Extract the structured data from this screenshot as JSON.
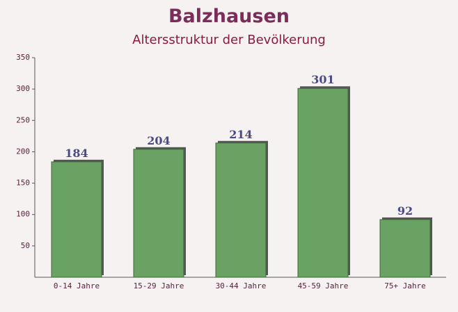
{
  "chart_data": {
    "type": "bar",
    "title": "Balzhausen",
    "subtitle": "Altersstruktur der Bevölkerung",
    "categories": [
      "0-14 Jahre",
      "15-29 Jahre",
      "30-44 Jahre",
      "45-59 Jahre",
      "75+ Jahre"
    ],
    "values": [
      184,
      204,
      214,
      301,
      92
    ],
    "color": "#6aa263",
    "ylim": [
      0,
      350
    ],
    "yticks": [
      50,
      100,
      150,
      200,
      250,
      300,
      350
    ],
    "grid": false
  }
}
